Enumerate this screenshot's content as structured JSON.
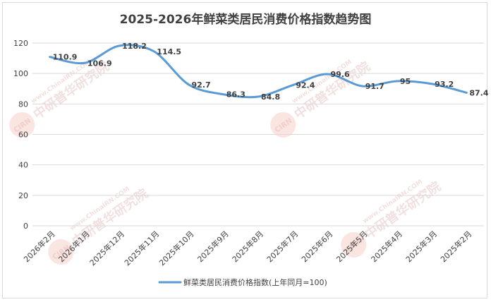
{
  "chart_data": {
    "type": "line",
    "title": "2025-2026年鲜菜类居民消费价格指数趋势图",
    "categories": [
      "2026年2月",
      "2026年1月",
      "2025年12月",
      "2025年11月",
      "2025年10月",
      "2025年9月",
      "2025年8月",
      "2025年7月",
      "2025年6月",
      "2025年5月",
      "2025年4月",
      "2025年3月",
      "2025年2月"
    ],
    "series": [
      {
        "name": "鲜菜类居民消费价格指数(上年同月=100)",
        "values": [
          110.9,
          106.9,
          118.2,
          114.5,
          92.7,
          86.3,
          84.8,
          92.4,
          99.6,
          91.7,
          95,
          93.2,
          87.4
        ],
        "labels": [
          "110.9",
          "106.9",
          "118.2",
          "114.5",
          "92.7",
          "86.3",
          "84.8",
          "92.4",
          "99.6",
          "91.7",
          "95",
          "93.2",
          "87.4"
        ],
        "color": "#5b9bd5"
      }
    ],
    "yticks": [
      "0",
      "20",
      "40",
      "60",
      "80",
      "100",
      "120"
    ],
    "ylim": [
      0,
      120
    ],
    "grid": true,
    "legend": "bottom",
    "smooth": true
  },
  "watermark": {
    "brand_en": "CIRN",
    "brand_cn": "中研普华研究院",
    "url": "www.ChinaIRN.COM"
  }
}
